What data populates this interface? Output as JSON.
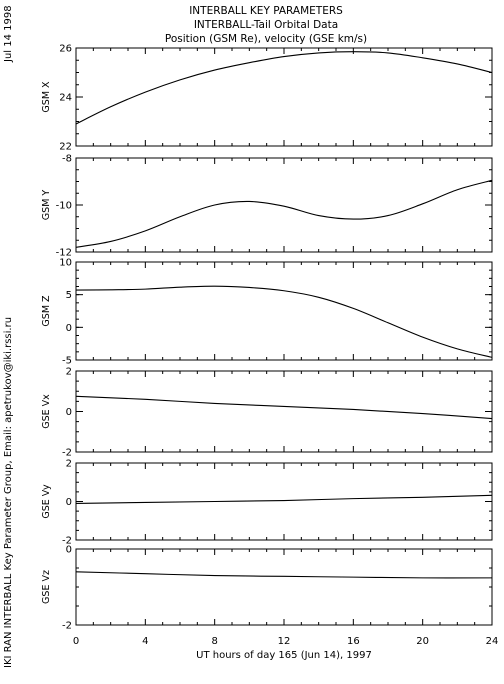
{
  "side_date": "Jul 14 1998",
  "side_credit": "IKI RAN INTERBALL Key Parameter Group, Email: apetrukov@iki.rssi.ru",
  "title_lines": [
    "INTERBALL KEY PARAMETERS",
    "INTERBALL-Tail Orbital Data",
    "Position (GSM Re), velocity (GSE km/s)"
  ],
  "chart_data": {
    "type": "line",
    "xlabel": "UT hours of day 165 (Jun 14), 1997",
    "xlim": [
      0,
      24
    ],
    "xticks": [
      0,
      4,
      8,
      12,
      16,
      20,
      24
    ],
    "grid": false,
    "panels": [
      {
        "ylabel": "GSM X",
        "ylim": [
          22,
          26
        ],
        "yticks": [
          22,
          24,
          26
        ],
        "x": [
          0,
          2,
          4,
          6,
          8,
          10,
          12,
          14,
          16,
          18,
          20,
          22,
          24
        ],
        "values": [
          22.9,
          23.6,
          24.2,
          24.7,
          25.1,
          25.4,
          25.65,
          25.8,
          25.85,
          25.8,
          25.6,
          25.35,
          25.0
        ]
      },
      {
        "ylabel": "GSM Y",
        "ylim": [
          -12,
          -8
        ],
        "yticks": [
          -12,
          -10,
          -8
        ],
        "x": [
          0,
          2,
          4,
          6,
          8,
          10,
          12,
          14,
          16,
          18,
          20,
          22,
          24
        ],
        "values": [
          -11.8,
          -11.55,
          -11.1,
          -10.5,
          -10.0,
          -9.85,
          -10.05,
          -10.45,
          -10.6,
          -10.45,
          -9.95,
          -9.35,
          -8.95
        ]
      },
      {
        "ylabel": "GSM Z",
        "ylim": [
          -5,
          10
        ],
        "yticks": [
          -5,
          0,
          5,
          10
        ],
        "x": [
          0,
          2,
          4,
          6,
          8,
          10,
          12,
          14,
          16,
          18,
          20,
          22,
          24
        ],
        "values": [
          5.7,
          5.75,
          5.85,
          6.15,
          6.3,
          6.1,
          5.6,
          4.6,
          2.9,
          0.7,
          -1.5,
          -3.3,
          -4.6
        ]
      },
      {
        "ylabel": "GSE Vx",
        "ylim": [
          -2,
          2
        ],
        "yticks": [
          -2,
          0,
          2
        ],
        "x": [
          0,
          4,
          8,
          12,
          16,
          20,
          24
        ],
        "values": [
          0.75,
          0.6,
          0.4,
          0.25,
          0.1,
          -0.1,
          -0.35
        ]
      },
      {
        "ylabel": "GSE Vy",
        "ylim": [
          -2,
          2
        ],
        "yticks": [
          -2,
          0,
          2
        ],
        "x": [
          0,
          4,
          8,
          12,
          16,
          20,
          24
        ],
        "values": [
          -0.1,
          -0.05,
          0.0,
          0.05,
          0.15,
          0.22,
          0.32
        ]
      },
      {
        "ylabel": "GSE Vz",
        "ylim": [
          -2,
          0
        ],
        "yticks": [
          -2,
          0
        ],
        "x": [
          0,
          4,
          8,
          12,
          16,
          20,
          24
        ],
        "values": [
          -0.6,
          -0.65,
          -0.7,
          -0.72,
          -0.74,
          -0.76,
          -0.76
        ]
      }
    ]
  }
}
